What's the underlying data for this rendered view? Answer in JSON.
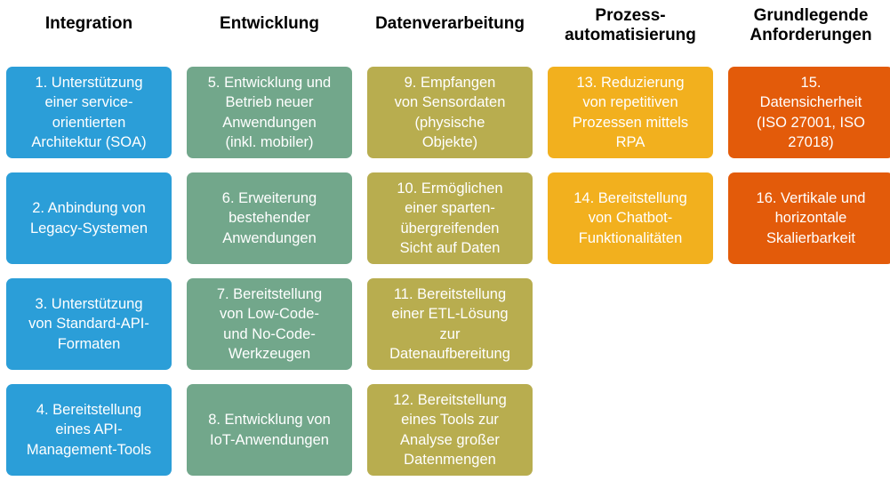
{
  "columns": [
    {
      "header": "Integration",
      "color": "#2b9ed8",
      "cards": [
        "1. Unterstützung\neiner service-\norientierten\nArchitektur (SOA)",
        "2. Anbindung von\nLegacy-Systemen",
        "3. Unterstützung\nvon Standard-API-\nFormaten",
        "4. Bereitstellung\neines API-\nManagement-Tools"
      ]
    },
    {
      "header": "Entwicklung",
      "color": "#72a78b",
      "cards": [
        "5. Entwicklung und\nBetrieb neuer\nAnwendungen\n(inkl. mobiler)",
        "6. Erweiterung\nbestehender\nAnwendungen",
        "7. Bereitstellung\nvon Low-Code-\nund No-Code-\nWerkzeugen",
        "8. Entwicklung von\nIoT-Anwendungen"
      ]
    },
    {
      "header": "Datenverarbeitung",
      "color": "#b8ad4f",
      "cards": [
        "9. Empfangen\nvon Sensordaten\n(physische\nObjekte)",
        "10. Ermöglichen\neiner sparten-\nübergreifenden\nSicht auf Daten",
        "11. Bereitstellung\neiner ETL-Lösung\nzur\nDatenaufbereitung",
        "12. Bereitstellung\neines Tools zur\nAnalyse großer\nDatenmengen"
      ]
    },
    {
      "header": "Prozess-\nautomatisierung",
      "color": "#f2b01e",
      "cards": [
        "13. Reduzierung\nvon repetitiven\nProzessen mittels\nRPA",
        "14. Bereitstellung\nvon Chatbot-\nFunktionalitäten"
      ]
    },
    {
      "header": "Grundlegende\nAnforderungen",
      "color": "#e35b0a",
      "cards": [
        "15.\nDatensicherheit\n(ISO 27001, ISO\n27018)",
        "16. Vertikale und\nhorizontale\nSkalierbarkeit"
      ]
    }
  ]
}
